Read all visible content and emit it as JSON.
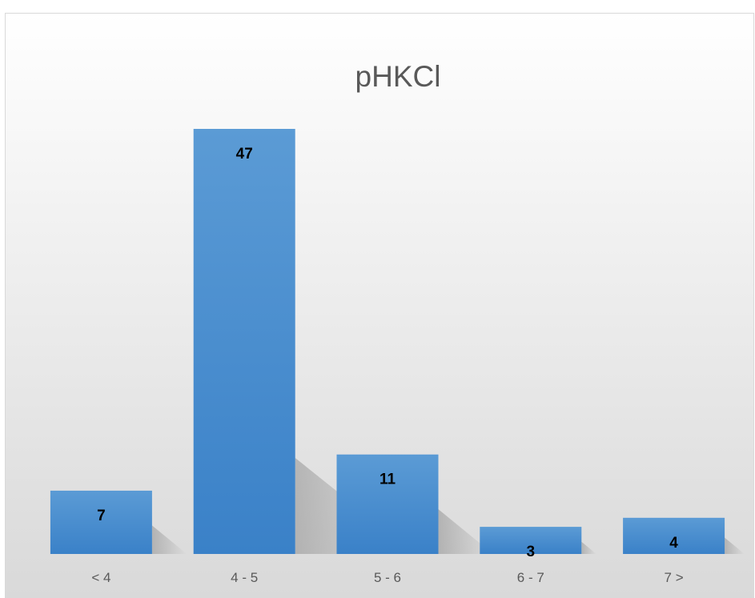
{
  "chart_data": {
    "type": "bar",
    "title": "pHKCl",
    "categories": [
      "< 4",
      "4 - 5",
      "5 - 6",
      "6 - 7",
      "7 >"
    ],
    "values": [
      7,
      47,
      11,
      3,
      4
    ],
    "xlabel": "",
    "ylabel": "",
    "ylim": [
      0,
      47
    ],
    "grid": false,
    "legend": "none",
    "data_labels": true,
    "colors": {
      "bar_top": "#5b9bd5",
      "bar_bottom": "#3a81c8",
      "background_top": "#ffffff",
      "background_bottom": "#d9d9d9",
      "border": "#d9d9d9",
      "title": "#595959",
      "tick_label": "#595959",
      "data_label": "#000000"
    }
  }
}
